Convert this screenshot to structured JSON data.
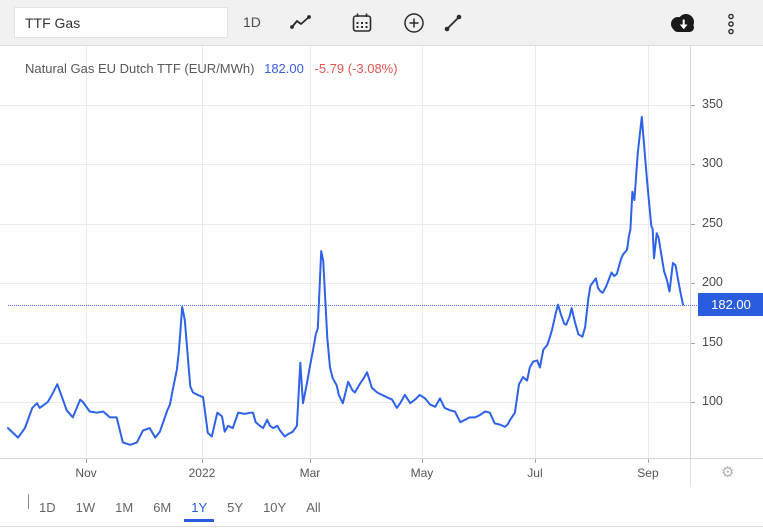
{
  "toolbar": {
    "symbol_value": "TTF Gas",
    "interval_label": "1D"
  },
  "header": {
    "title": "Natural Gas EU Dutch TTF (EUR/MWh)",
    "price": "182.00",
    "change": "-5.79 (-3.08%)"
  },
  "price_scale": {
    "last_price_label": "182.00"
  },
  "icons": {
    "settings_glyph": "⚙"
  },
  "range_buttons": [
    "1D",
    "1W",
    "1M",
    "6M",
    "1Y",
    "5Y",
    "10Y",
    "All"
  ],
  "active_range": "1Y",
  "colors": {
    "accent_blue": "#2a5ce0",
    "line_blue": "#2e62e9",
    "price_blue": "#3a5be0",
    "change_red": "#e0564f",
    "title_gray": "#595959"
  },
  "chart_data": {
    "type": "line",
    "title": "Natural Gas EU Dutch TTF (EUR/MWh)",
    "unit": "EUR/MWh",
    "last_value": 182.0,
    "change": -5.79,
    "change_pct": -3.08,
    "range": "1Y",
    "grid": true,
    "legend_position": "none",
    "y_ticks": [
      100,
      150,
      200,
      250,
      300,
      350
    ],
    "ylim": [
      53,
      364
    ],
    "x_ticks": [
      {
        "pos": 0.1156,
        "label": "Nov"
      },
      {
        "pos": 0.2874,
        "label": "2022"
      },
      {
        "pos": 0.4474,
        "label": "Mar"
      },
      {
        "pos": 0.6133,
        "label": "May"
      },
      {
        "pos": 0.7807,
        "label": "Jul"
      },
      {
        "pos": 0.9481,
        "label": "Sep"
      }
    ],
    "points": [
      [
        0.0,
        78
      ],
      [
        0.015,
        70
      ],
      [
        0.025,
        78
      ],
      [
        0.036,
        95
      ],
      [
        0.043,
        99
      ],
      [
        0.047,
        95
      ],
      [
        0.059,
        100
      ],
      [
        0.065,
        106
      ],
      [
        0.073,
        115
      ],
      [
        0.08,
        104
      ],
      [
        0.087,
        93
      ],
      [
        0.096,
        87
      ],
      [
        0.107,
        102
      ],
      [
        0.111,
        100
      ],
      [
        0.121,
        92
      ],
      [
        0.132,
        91
      ],
      [
        0.141,
        92
      ],
      [
        0.151,
        87
      ],
      [
        0.161,
        87
      ],
      [
        0.17,
        66
      ],
      [
        0.181,
        64
      ],
      [
        0.191,
        66
      ],
      [
        0.2,
        76
      ],
      [
        0.21,
        78
      ],
      [
        0.218,
        70
      ],
      [
        0.225,
        75
      ],
      [
        0.236,
        93
      ],
      [
        0.24,
        98
      ],
      [
        0.244,
        110
      ],
      [
        0.25,
        127
      ],
      [
        0.253,
        142
      ],
      [
        0.258,
        180
      ],
      [
        0.262,
        169
      ],
      [
        0.267,
        134
      ],
      [
        0.27,
        113
      ],
      [
        0.274,
        108
      ],
      [
        0.281,
        106
      ],
      [
        0.289,
        104
      ],
      [
        0.296,
        74
      ],
      [
        0.302,
        71
      ],
      [
        0.31,
        91
      ],
      [
        0.317,
        88
      ],
      [
        0.321,
        75
      ],
      [
        0.326,
        80
      ],
      [
        0.333,
        78
      ],
      [
        0.341,
        91
      ],
      [
        0.351,
        90
      ],
      [
        0.359,
        91
      ],
      [
        0.363,
        91
      ],
      [
        0.367,
        83
      ],
      [
        0.373,
        80
      ],
      [
        0.378,
        78
      ],
      [
        0.384,
        85
      ],
      [
        0.388,
        80
      ],
      [
        0.393,
        78
      ],
      [
        0.399,
        80
      ],
      [
        0.403,
        76
      ],
      [
        0.41,
        71
      ],
      [
        0.415,
        73
      ],
      [
        0.422,
        75
      ],
      [
        0.428,
        80
      ],
      [
        0.433,
        133
      ],
      [
        0.437,
        99
      ],
      [
        0.443,
        116
      ],
      [
        0.447,
        129
      ],
      [
        0.452,
        144
      ],
      [
        0.456,
        157
      ],
      [
        0.459,
        162
      ],
      [
        0.464,
        227
      ],
      [
        0.467,
        219
      ],
      [
        0.473,
        154
      ],
      [
        0.477,
        129
      ],
      [
        0.481,
        120
      ],
      [
        0.487,
        114
      ],
      [
        0.49,
        106
      ],
      [
        0.496,
        99
      ],
      [
        0.504,
        117
      ],
      [
        0.51,
        110
      ],
      [
        0.514,
        108
      ],
      [
        0.521,
        115
      ],
      [
        0.527,
        120
      ],
      [
        0.532,
        125
      ],
      [
        0.539,
        112
      ],
      [
        0.547,
        108
      ],
      [
        0.554,
        106
      ],
      [
        0.561,
        104
      ],
      [
        0.569,
        102
      ],
      [
        0.576,
        95
      ],
      [
        0.581,
        99
      ],
      [
        0.588,
        106
      ],
      [
        0.596,
        99
      ],
      [
        0.603,
        102
      ],
      [
        0.61,
        106
      ],
      [
        0.618,
        103
      ],
      [
        0.625,
        98
      ],
      [
        0.633,
        96
      ],
      [
        0.64,
        103
      ],
      [
        0.647,
        95
      ],
      [
        0.655,
        93
      ],
      [
        0.662,
        92
      ],
      [
        0.67,
        83
      ],
      [
        0.677,
        85
      ],
      [
        0.684,
        87
      ],
      [
        0.692,
        87
      ],
      [
        0.699,
        89
      ],
      [
        0.707,
        92
      ],
      [
        0.714,
        91
      ],
      [
        0.721,
        82
      ],
      [
        0.729,
        81
      ],
      [
        0.736,
        79
      ],
      [
        0.74,
        81
      ],
      [
        0.744,
        85
      ],
      [
        0.751,
        91
      ],
      [
        0.757,
        115
      ],
      [
        0.763,
        121
      ],
      [
        0.769,
        118
      ],
      [
        0.773,
        129
      ],
      [
        0.778,
        134
      ],
      [
        0.784,
        135
      ],
      [
        0.788,
        129
      ],
      [
        0.793,
        144
      ],
      [
        0.799,
        148
      ],
      [
        0.803,
        155
      ],
      [
        0.806,
        161
      ],
      [
        0.812,
        176
      ],
      [
        0.815,
        182
      ],
      [
        0.819,
        174
      ],
      [
        0.824,
        166
      ],
      [
        0.827,
        165
      ],
      [
        0.832,
        172
      ],
      [
        0.835,
        179
      ],
      [
        0.84,
        167
      ],
      [
        0.845,
        157
      ],
      [
        0.851,
        155
      ],
      [
        0.855,
        163
      ],
      [
        0.86,
        188
      ],
      [
        0.863,
        198
      ],
      [
        0.867,
        201
      ],
      [
        0.871,
        204
      ],
      [
        0.874,
        196
      ],
      [
        0.878,
        193
      ],
      [
        0.881,
        192
      ],
      [
        0.886,
        197
      ],
      [
        0.89,
        203
      ],
      [
        0.894,
        209
      ],
      [
        0.898,
        206
      ],
      [
        0.902,
        208
      ],
      [
        0.908,
        220
      ],
      [
        0.911,
        224
      ],
      [
        0.917,
        228
      ],
      [
        0.92,
        240
      ],
      [
        0.922,
        245
      ],
      [
        0.925,
        277
      ],
      [
        0.928,
        270
      ],
      [
        0.933,
        310
      ],
      [
        0.939,
        340
      ],
      [
        0.944,
        305
      ],
      [
        0.947,
        285
      ],
      [
        0.95,
        266
      ],
      [
        0.953,
        248
      ],
      [
        0.955,
        246
      ],
      [
        0.957,
        221
      ],
      [
        0.961,
        242
      ],
      [
        0.964,
        238
      ],
      [
        0.969,
        220
      ],
      [
        0.972,
        210
      ],
      [
        0.976,
        203
      ],
      [
        0.98,
        193
      ],
      [
        0.985,
        217
      ],
      [
        0.989,
        215
      ],
      [
        0.992,
        205
      ],
      [
        0.997,
        190
      ],
      [
        1.0,
        182
      ]
    ]
  }
}
